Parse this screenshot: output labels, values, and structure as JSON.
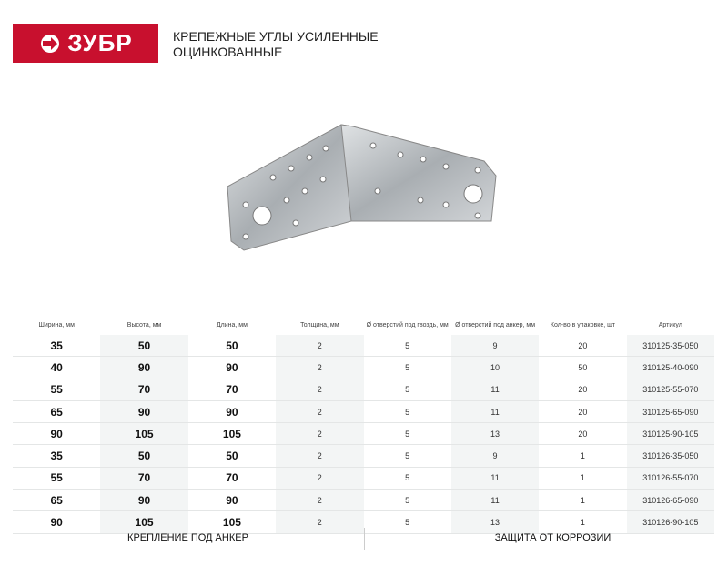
{
  "brand": {
    "logo_text": "ЗУБР",
    "color": "#c8102e"
  },
  "title": {
    "line1": "КРЕПЕЖНЫЕ УГЛЫ УСИЛЕННЫЕ",
    "line2": "ОЦИНКОВАННЫЕ"
  },
  "table": {
    "headers": [
      "Ширина, мм",
      "Высота, мм",
      "Длина, мм",
      "Толщина, мм",
      "Ø отверстий под гвоздь, мм",
      "Ø отверстий под анкер, мм",
      "Кол-во в упаковке, шт",
      "Артикул"
    ],
    "rows": [
      [
        "35",
        "50",
        "50",
        "2",
        "5",
        "9",
        "20",
        "310125-35-050"
      ],
      [
        "40",
        "90",
        "90",
        "2",
        "5",
        "10",
        "50",
        "310125-40-090"
      ],
      [
        "55",
        "70",
        "70",
        "2",
        "5",
        "11",
        "20",
        "310125-55-070"
      ],
      [
        "65",
        "90",
        "90",
        "2",
        "5",
        "11",
        "20",
        "310125-65-090"
      ],
      [
        "90",
        "105",
        "105",
        "2",
        "5",
        "13",
        "20",
        "310125-90-105"
      ],
      [
        "35",
        "50",
        "50",
        "2",
        "5",
        "9",
        "1",
        "310126-35-050"
      ],
      [
        "55",
        "70",
        "70",
        "2",
        "5",
        "11",
        "1",
        "310126-55-070"
      ],
      [
        "65",
        "90",
        "90",
        "2",
        "5",
        "11",
        "1",
        "310126-65-090"
      ],
      [
        "90",
        "105",
        "105",
        "2",
        "5",
        "13",
        "1",
        "310126-90-105"
      ]
    ]
  },
  "features": [
    "КРЕПЛЕНИЕ ПОД АНКЕР",
    "ЗАЩИТА ОТ КОРРОЗИИ"
  ]
}
